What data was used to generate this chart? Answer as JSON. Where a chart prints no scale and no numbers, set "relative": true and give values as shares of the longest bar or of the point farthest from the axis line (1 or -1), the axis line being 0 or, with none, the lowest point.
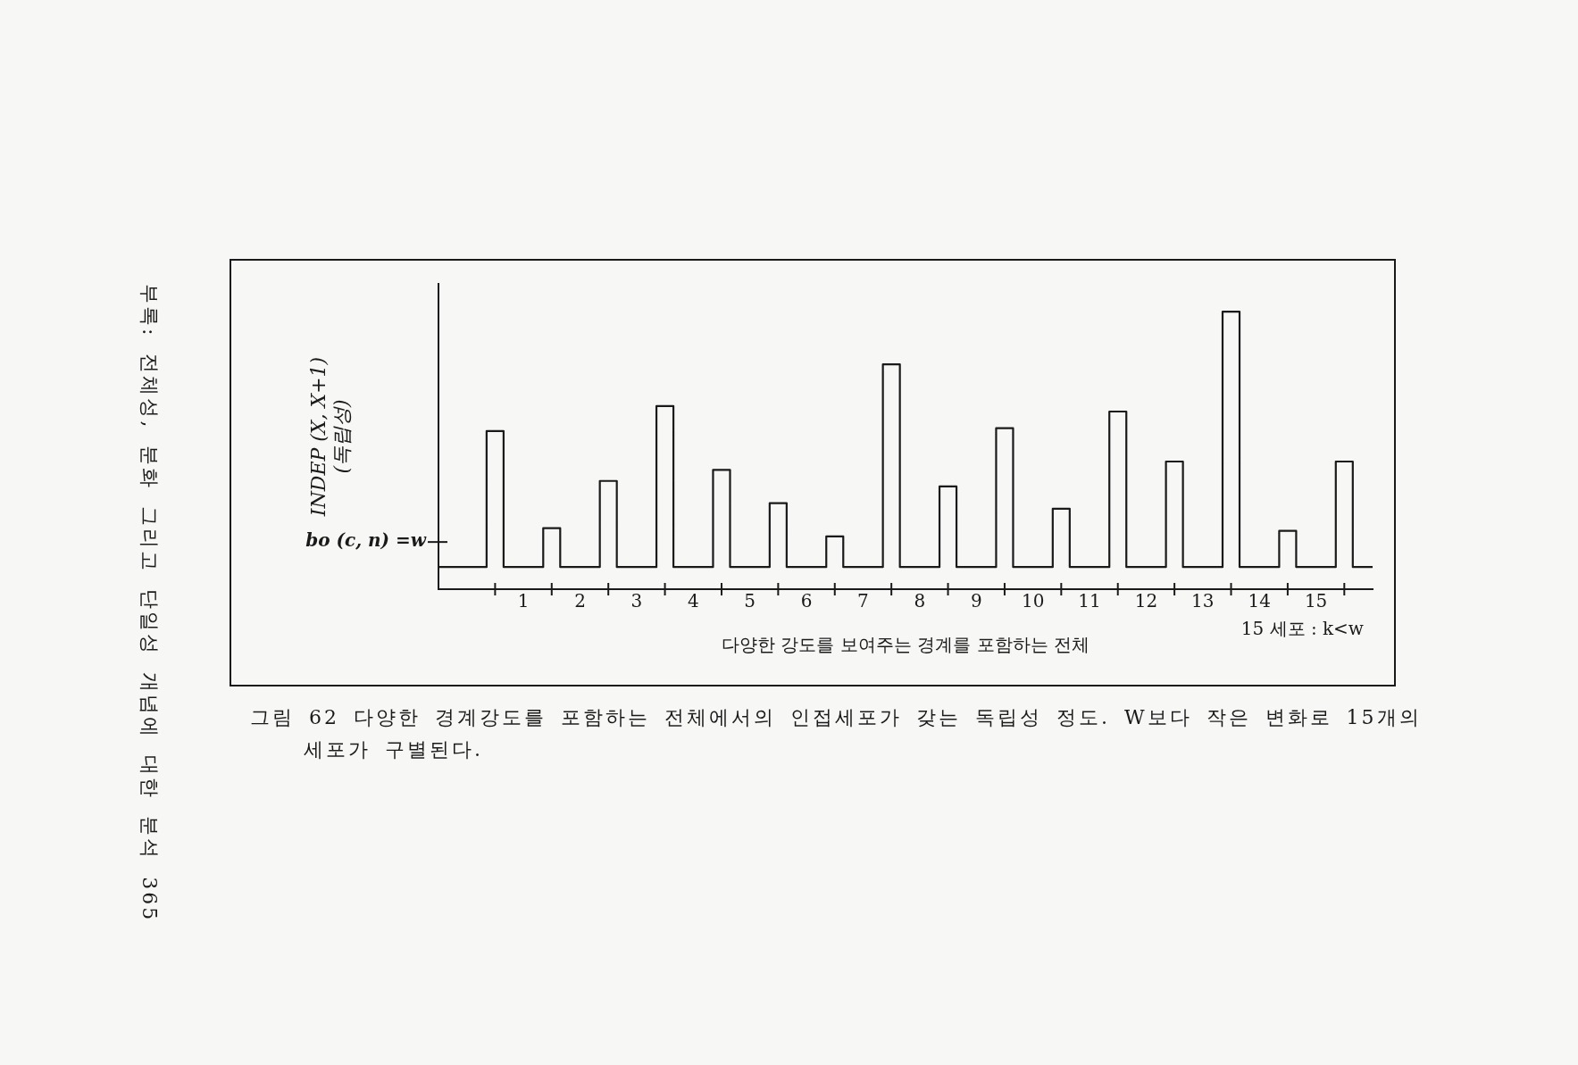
{
  "chart_data": {
    "type": "line",
    "relative": true,
    "marker": "none",
    "xlabel": "다양한 강도를 보여주는 경계를 포함하는 전체",
    "ylabel": "INDEP (X, X+1)\n(독립성)",
    "annotations": [
      "15 세포 : k<w",
      "그림 62  다양한 경계강도를 포함하는 전체에서의 인접세포가 갖는 독립성 정도. W보다 작은 변화로 15개의 세포가 구별된다.",
      "부록: 전체성, 분화 그리고 단일성 개념에 대한 분석  365"
    ],
    "xlim": [
      -1,
      15.5
    ],
    "xticks": [
      {
        "value": 0,
        "label": null
      },
      {
        "value": 0.5,
        "label": "1"
      },
      {
        "value": 1,
        "label": null
      },
      {
        "value": 1.5,
        "label": "2"
      },
      {
        "value": 2,
        "label": null
      },
      {
        "value": 2.5,
        "label": "3"
      },
      {
        "value": 3,
        "label": null
      },
      {
        "value": 3.5,
        "label": "4"
      },
      {
        "value": 4,
        "label": null
      },
      {
        "value": 4.5,
        "label": "5"
      },
      {
        "value": 5,
        "label": null
      },
      {
        "value": 5.5,
        "label": "6"
      },
      {
        "value": 6,
        "label": null
      },
      {
        "value": 6.5,
        "label": "7"
      },
      {
        "value": 7,
        "label": null
      },
      {
        "value": 7.5,
        "label": "8"
      },
      {
        "value": 8,
        "label": null
      },
      {
        "value": 8.5,
        "label": "9"
      },
      {
        "value": 9,
        "label": null
      },
      {
        "value": 9.5,
        "label": "10"
      },
      {
        "value": 10,
        "label": null
      },
      {
        "value": 10.5,
        "label": "11"
      },
      {
        "value": 11,
        "label": null
      },
      {
        "value": 11.5,
        "label": "12"
      },
      {
        "value": 12,
        "label": null
      },
      {
        "value": 12.5,
        "label": "13"
      },
      {
        "value": 13,
        "label": null
      },
      {
        "value": 13.5,
        "label": "14"
      },
      {
        "value": 14,
        "label": null
      },
      {
        "value": 14.5,
        "label": "15"
      },
      {
        "value": 15,
        "label": null
      }
    ],
    "ref_lines": [
      {
        "axis": "y",
        "value": 0.17,
        "label": "bo (c, n) =w"
      }
    ],
    "series": [
      {
        "color": "#1a1a1a",
        "x": [
          -1,
          -0.15,
          -0.15,
          0.15,
          0.15,
          0.85,
          0.85,
          1.15,
          1.15,
          1.85,
          1.85,
          2.15,
          2.15,
          2.85,
          2.85,
          3.15,
          3.15,
          3.85,
          3.85,
          4.15,
          4.15,
          4.85,
          4.85,
          5.15,
          5.15,
          5.85,
          5.85,
          6.15,
          6.15,
          6.85,
          6.85,
          7.15,
          7.15,
          7.85,
          7.85,
          8.15,
          8.15,
          8.85,
          8.85,
          9.15,
          9.15,
          9.85,
          9.85,
          10.15,
          10.15,
          10.85,
          10.85,
          11.15,
          11.15,
          11.85,
          11.85,
          12.15,
          12.15,
          12.85,
          12.85,
          13.15,
          13.15,
          13.85,
          13.85,
          14.15,
          14.15,
          14.85,
          14.85,
          15.15,
          15.15,
          15.5
        ],
        "values": [
          0.08,
          0.08,
          0.57,
          0.57,
          0.08,
          0.08,
          0.22,
          0.22,
          0.08,
          0.08,
          0.39,
          0.39,
          0.08,
          0.08,
          0.66,
          0.66,
          0.08,
          0.08,
          0.43,
          0.43,
          0.08,
          0.08,
          0.31,
          0.31,
          0.08,
          0.08,
          0.19,
          0.19,
          0.08,
          0.08,
          0.81,
          0.81,
          0.08,
          0.08,
          0.37,
          0.37,
          0.08,
          0.08,
          0.58,
          0.58,
          0.08,
          0.08,
          0.29,
          0.29,
          0.08,
          0.08,
          0.64,
          0.64,
          0.08,
          0.08,
          0.46,
          0.46,
          0.08,
          0.08,
          1,
          1,
          0.08,
          0.08,
          0.21,
          0.21,
          0.08,
          0.08,
          0.46,
          0.46,
          0.08,
          0.08
        ]
      }
    ]
  }
}
